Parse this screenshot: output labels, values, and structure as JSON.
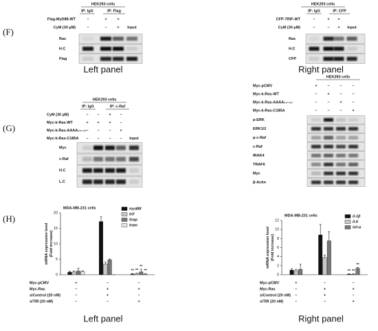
{
  "panel_f": {
    "label": "(F)",
    "left": {
      "cell": "HEK293 cells",
      "ip": [
        "IP: IgG",
        "IP: Flag"
      ],
      "rows": [
        {
          "label": "Flag-MyD88-WT",
          "signs": [
            "–",
            "+",
            "+"
          ]
        },
        {
          "label": "CyM (30 µM)",
          "signs": [
            "–",
            "–",
            "+"
          ]
        }
      ],
      "input": "Input",
      "blots": [
        "Ras",
        "H.C",
        "Flag"
      ],
      "caption": "Left panel"
    },
    "right": {
      "cell": "HEK293 cells",
      "ip": [
        "IP: IgG",
        "IP: CFP"
      ],
      "rows": [
        {
          "label": "CFP-TRIF-WT",
          "signs": [
            "–",
            "+",
            "+"
          ]
        },
        {
          "label": "CyM (30 µM)",
          "signs": [
            "–",
            "–",
            "+"
          ]
        }
      ],
      "input": "Input",
      "blots": [
        "Ras",
        "H.C",
        "CFP"
      ],
      "caption": "Right panel"
    }
  },
  "panel_g": {
    "label": "(G)",
    "left": {
      "cell": "HEK293 cells",
      "ip": [
        "IP: IgG",
        "IP: c-Raf"
      ],
      "rows": [
        {
          "label": "CyM (30 µM)",
          "signs": [
            "–",
            "–",
            "+",
            "–"
          ]
        },
        {
          "label": "Myc-k-Ras-WT",
          "signs": [
            "+",
            "+",
            "+",
            "–"
          ]
        },
        {
          "label": "Myc-k-Ras-AAAA₆₄₋₆₇",
          "signs": [
            "–",
            "–",
            "–",
            "+"
          ]
        },
        {
          "label": "Myc-k-Ras-C185A",
          "signs": [
            "–",
            "–",
            "–",
            "–"
          ]
        }
      ],
      "input": "Input",
      "blots": [
        "Myc",
        "c-Raf",
        "H.C",
        "L.C"
      ]
    },
    "right": {
      "cell": "HEK293 cells",
      "rows": [
        {
          "label": "Myc-pCMV",
          "signs": [
            "+",
            "–",
            "–",
            "–"
          ]
        },
        {
          "label": "Myc-k-Ras-WT",
          "signs": [
            "–",
            "+",
            "–",
            "–"
          ]
        },
        {
          "label": "Myc-k-Ras-AAAA₆₄₋₆₇",
          "signs": [
            "–",
            "–",
            "+",
            "–"
          ]
        },
        {
          "label": "Myc-k-Ras-C185A",
          "signs": [
            "–",
            "–",
            "–",
            "+"
          ]
        }
      ],
      "blots": [
        "p-ERK",
        "ERK1/2",
        "p-c-Raf",
        "c-Raf",
        "IRAK4",
        "TRAF6",
        "Myc",
        "β-Actin"
      ]
    }
  },
  "panel_h": {
    "label": "(H)",
    "captions": [
      "Left panel",
      "Right panel"
    ]
  },
  "chart_data": [
    {
      "type": "bar",
      "title": "MDA-MB-231 cells",
      "ylabel": [
        "mRNA expression level",
        "(Fold increase)"
      ],
      "categories": [
        null,
        null,
        null
      ],
      "ylim": [
        0,
        20
      ],
      "yticks": [
        0,
        5,
        10,
        15,
        20
      ],
      "legend": "upper right",
      "series": [
        {
          "name": "myd88",
          "color": "#111111",
          "values": [
            0.8,
            17.2,
            0.2
          ],
          "errors": [
            0.3,
            1.5,
            0.2
          ],
          "annotations": [
            null,
            null,
            "**"
          ]
        },
        {
          "name": "trif",
          "color": "#c8c8c8",
          "values": [
            0.9,
            3.5,
            0.3
          ],
          "errors": [
            0.3,
            0.6,
            0.2
          ],
          "annotations": [
            null,
            null,
            "**"
          ]
        },
        {
          "name": "tirap",
          "color": "#777777",
          "values": [
            1.2,
            4.8,
            0.9
          ],
          "errors": [
            0.9,
            0.3,
            0.9
          ],
          "annotations": [
            null,
            null,
            "**"
          ]
        },
        {
          "name": "tram",
          "color": "#e6e6e6",
          "values": [
            1.0,
            0,
            0.2
          ],
          "errors": [
            0.3,
            0,
            0.2
          ],
          "annotations": [
            null,
            null,
            "**"
          ]
        }
      ],
      "conditions": [
        {
          "label": "Myc-pCMV",
          "signs": [
            "+",
            "–",
            "–"
          ]
        },
        {
          "label": "Myc-Ras",
          "signs": [
            "–",
            "+",
            "+"
          ]
        },
        {
          "label": "siControl (20 nM)",
          "signs": [
            "–",
            "+",
            "–"
          ]
        },
        {
          "label": "siTIR (20 nM)",
          "signs": [
            "–",
            "–",
            "+"
          ]
        }
      ]
    },
    {
      "type": "bar",
      "title": "MDA-MB-231 cells",
      "ylabel": [
        "mRNA expression level",
        "(Fold increase)"
      ],
      "categories": [
        null,
        null,
        null
      ],
      "ylim": [
        0,
        12
      ],
      "yticks": [
        0,
        2,
        4,
        6,
        8,
        10,
        12
      ],
      "legend": "upper right",
      "series": [
        {
          "name": "il-1β",
          "color": "#111111",
          "values": [
            1.0,
            8.8,
            0.1
          ],
          "errors": [
            0.3,
            2.3,
            0.1
          ],
          "annotations": [
            null,
            null,
            "**"
          ]
        },
        {
          "name": "il-6",
          "color": "#c8c8c8",
          "values": [
            0.9,
            3.8,
            0.1
          ],
          "errors": [
            0.3,
            0.5,
            0.1
          ],
          "annotations": [
            null,
            null,
            "**"
          ]
        },
        {
          "name": "tnf-α",
          "color": "#777777",
          "values": [
            1.2,
            7.5,
            1.4
          ],
          "errors": [
            1.1,
            2.0,
            0.2
          ],
          "annotations": [
            null,
            null,
            "**"
          ]
        }
      ],
      "conditions": [
        {
          "label": "Myc-pCMV",
          "signs": [
            "+",
            "–",
            "–"
          ]
        },
        {
          "label": "Myc-Ras",
          "signs": [
            "–",
            "+",
            "+"
          ]
        },
        {
          "label": "siControl (20 nM)",
          "signs": [
            "–",
            "+",
            "–"
          ]
        },
        {
          "label": "siTIR (20 nM)",
          "signs": [
            "–",
            "–",
            "+"
          ]
        }
      ]
    }
  ]
}
